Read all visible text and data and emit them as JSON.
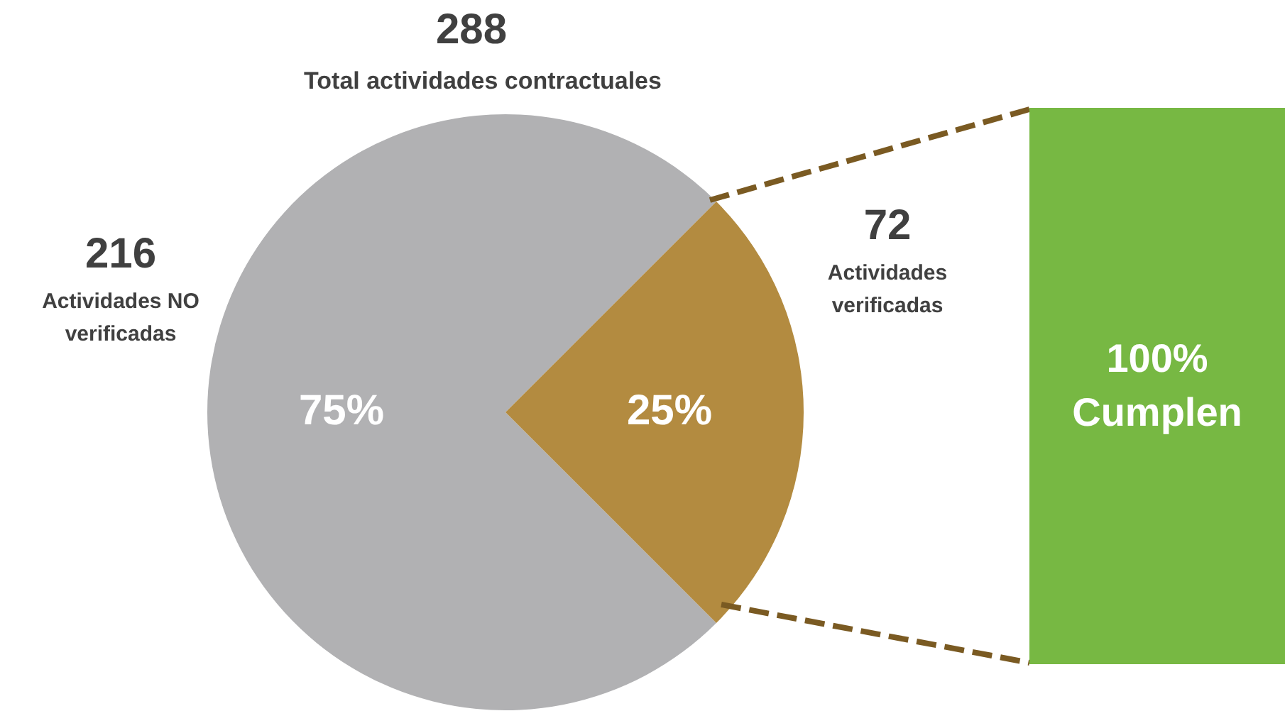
{
  "chart_data": [
    {
      "type": "pie",
      "title": "288",
      "subtitle": "Total actividades contractuales",
      "categories": [
        "Actividades NO verificadas",
        "Actividades verificadas"
      ],
      "values": [
        75,
        25
      ],
      "colors": [
        "#b1b1b3",
        "#b38b40"
      ],
      "value_labels": [
        "75%",
        "25%"
      ],
      "annotations": [
        "216",
        "72"
      ],
      "legend": false
    },
    {
      "type": "other",
      "color": "#77b843",
      "annotations": [
        "100%",
        "Cumplen"
      ]
    }
  ]
}
